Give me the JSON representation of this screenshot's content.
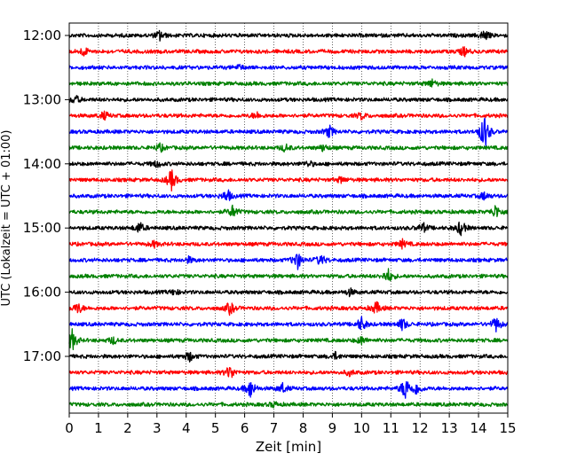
{
  "chart_data": {
    "type": "line",
    "title": "",
    "xlabel": "Zeit  [min]",
    "ylabel": "UTC (Lokalzeit = UTC + 01:00)",
    "xlim": [
      0,
      15
    ],
    "x_ticks": [
      "0",
      "1",
      "2",
      "3",
      "4",
      "5",
      "6",
      "7",
      "8",
      "9",
      "10",
      "11",
      "12",
      "13",
      "14",
      "15"
    ],
    "y_ticks": [
      "12:00",
      "13:00",
      "14:00",
      "15:00",
      "16:00",
      "17:00"
    ],
    "grid": "vertical dotted",
    "trace_interval_minutes": 15,
    "trace_colors": [
      "#000000",
      "#ff0000",
      "#0000ff",
      "#008000"
    ],
    "traces": [
      {
        "start": "12:00",
        "color": "#000000",
        "events": [
          [
            3.1,
            1.0
          ],
          [
            14.2,
            1.1
          ]
        ]
      },
      {
        "start": "12:15",
        "color": "#ff0000",
        "events": [
          [
            0.5,
            0.9
          ],
          [
            13.5,
            0.9
          ]
        ]
      },
      {
        "start": "12:30",
        "color": "#0000ff",
        "events": [
          [
            5.8,
            0.5
          ]
        ]
      },
      {
        "start": "12:45",
        "color": "#008000",
        "events": [
          [
            12.4,
            0.8
          ]
        ]
      },
      {
        "start": "13:00",
        "color": "#000000",
        "events": [
          [
            0.2,
            0.9
          ]
        ]
      },
      {
        "start": "13:15",
        "color": "#ff0000",
        "events": [
          [
            1.2,
            0.8
          ],
          [
            6.4,
            0.7
          ],
          [
            10.0,
            0.7
          ]
        ]
      },
      {
        "start": "13:30",
        "color": "#0000ff",
        "events": [
          [
            8.9,
            1.2
          ],
          [
            14.2,
            4.0
          ]
        ]
      },
      {
        "start": "13:45",
        "color": "#008000",
        "events": [
          [
            3.1,
            0.8
          ],
          [
            7.4,
            0.8
          ],
          [
            8.7,
            0.7
          ]
        ]
      },
      {
        "start": "14:00",
        "color": "#000000",
        "events": [
          [
            3.0,
            0.7
          ],
          [
            8.2,
            0.6
          ]
        ]
      },
      {
        "start": "14:15",
        "color": "#ff0000",
        "events": [
          [
            3.5,
            2.2
          ],
          [
            9.3,
            0.6
          ]
        ]
      },
      {
        "start": "14:30",
        "color": "#0000ff",
        "events": [
          [
            5.4,
            1.4
          ],
          [
            14.2,
            0.8
          ]
        ]
      },
      {
        "start": "14:45",
        "color": "#008000",
        "events": [
          [
            5.6,
            1.3
          ],
          [
            14.6,
            1.5
          ]
        ]
      },
      {
        "start": "15:00",
        "color": "#000000",
        "events": [
          [
            2.4,
            1.2
          ],
          [
            12.1,
            1.0
          ],
          [
            13.4,
            1.6
          ]
        ]
      },
      {
        "start": "15:15",
        "color": "#ff0000",
        "events": [
          [
            2.9,
            0.6
          ],
          [
            11.4,
            0.8
          ]
        ]
      },
      {
        "start": "15:30",
        "color": "#0000ff",
        "events": [
          [
            4.1,
            0.6
          ],
          [
            7.8,
            1.9
          ],
          [
            8.6,
            1.2
          ]
        ]
      },
      {
        "start": "15:45",
        "color": "#008000",
        "events": [
          [
            10.9,
            1.5
          ]
        ]
      },
      {
        "start": "16:00",
        "color": "#000000",
        "events": [
          [
            3.6,
            0.6
          ],
          [
            9.6,
            0.7
          ]
        ]
      },
      {
        "start": "16:15",
        "color": "#ff0000",
        "events": [
          [
            0.3,
            1.2
          ],
          [
            5.5,
            1.3
          ],
          [
            10.5,
            1.3
          ]
        ]
      },
      {
        "start": "16:30",
        "color": "#0000ff",
        "events": [
          [
            10.0,
            1.5
          ],
          [
            11.4,
            1.3
          ],
          [
            14.6,
            1.5
          ]
        ]
      },
      {
        "start": "16:45",
        "color": "#008000",
        "events": [
          [
            0.1,
            2.2
          ],
          [
            1.5,
            0.7
          ],
          [
            10.0,
            0.8
          ]
        ]
      },
      {
        "start": "17:00",
        "color": "#000000",
        "events": [
          [
            4.1,
            1.1
          ],
          [
            9.1,
            0.7
          ]
        ]
      },
      {
        "start": "17:15",
        "color": "#ff0000",
        "events": [
          [
            5.5,
            1.5
          ],
          [
            9.6,
            0.6
          ]
        ]
      },
      {
        "start": "17:30",
        "color": "#0000ff",
        "events": [
          [
            6.2,
            2.0
          ],
          [
            7.3,
            1.0
          ],
          [
            11.5,
            2.5
          ],
          [
            11.9,
            1.3
          ]
        ]
      },
      {
        "start": "17:45",
        "color": "#008000",
        "events": [
          [
            7.0,
            0.5
          ]
        ]
      }
    ]
  }
}
